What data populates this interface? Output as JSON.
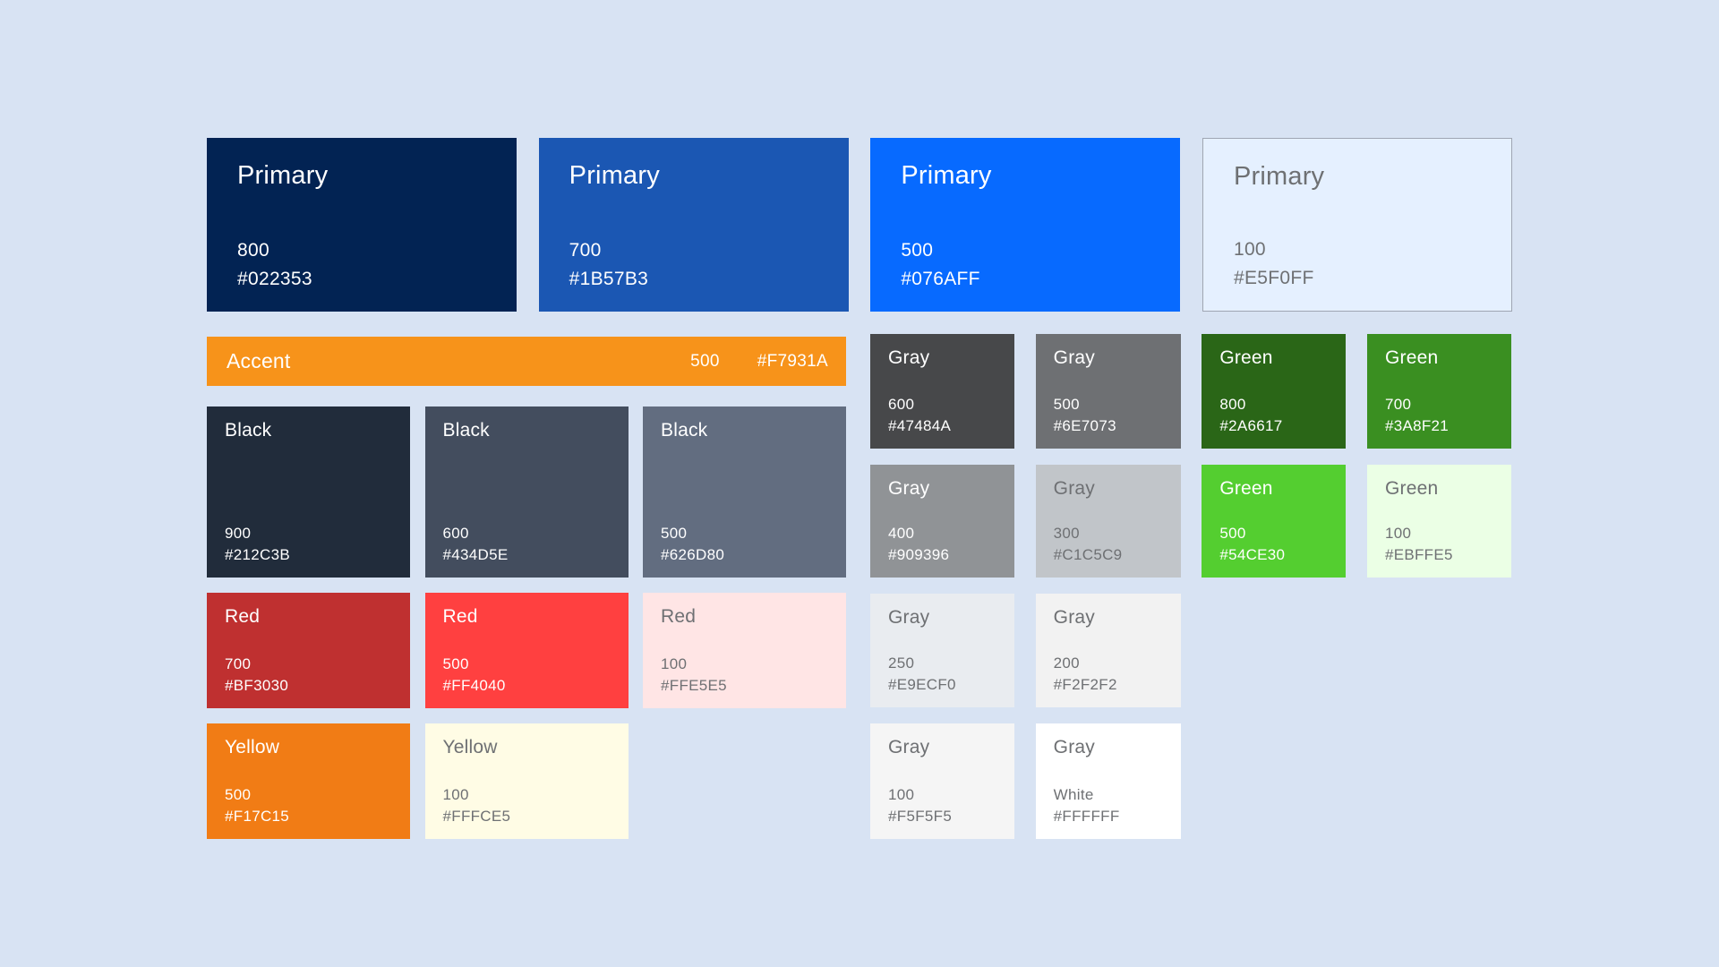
{
  "page": {
    "background": "#D8E3F3",
    "text_light": "#FFFFFF",
    "text_dark": "#6E7073"
  },
  "primary": {
    "p800": {
      "name": "Primary",
      "shade": "800",
      "hex": "#022353",
      "fg": "#FFFFFF"
    },
    "p700": {
      "name": "Primary",
      "shade": "700",
      "hex": "#1B57B3",
      "fg": "#FFFFFF"
    },
    "p500": {
      "name": "Primary",
      "shade": "500",
      "hex": "#076AFF",
      "fg": "#FFFFFF"
    },
    "p100": {
      "name": "Primary",
      "shade": "100",
      "hex": "#E5F0FF",
      "fg": "#6E7073"
    }
  },
  "accent": {
    "name": "Accent",
    "shade": "500",
    "hex": "#F7931A",
    "fg": "#FFFFFF"
  },
  "black": {
    "b900": {
      "name": "Black",
      "shade": "900",
      "hex": "#212C3B",
      "fg": "#FFFFFF"
    },
    "b600": {
      "name": "Black",
      "shade": "600",
      "hex": "#434D5E",
      "fg": "#FFFFFF"
    },
    "b500": {
      "name": "Black",
      "shade": "500",
      "hex": "#626D80",
      "fg": "#FFFFFF"
    }
  },
  "red": {
    "r700": {
      "name": "Red",
      "shade": "700",
      "hex": "#BF3030",
      "fg": "#FFFFFF"
    },
    "r500": {
      "name": "Red",
      "shade": "500",
      "hex": "#FF4040",
      "fg": "#FFFFFF"
    },
    "r100": {
      "name": "Red",
      "shade": "100",
      "hex": "#FFE5E5",
      "fg": "#6E7073"
    }
  },
  "yellow": {
    "y500": {
      "name": "Yellow",
      "shade": "500",
      "hex": "#F17C15",
      "fg": "#FFFFFF"
    },
    "y100": {
      "name": "Yellow",
      "shade": "100",
      "hex": "#FFFCE5",
      "fg": "#6E7073"
    }
  },
  "gray": {
    "g600": {
      "name": "Gray",
      "shade": "600",
      "hex": "#47484A",
      "fg": "#FFFFFF"
    },
    "g500": {
      "name": "Gray",
      "shade": "500",
      "hex": "#6E7073",
      "fg": "#FFFFFF"
    },
    "g400": {
      "name": "Gray",
      "shade": "400",
      "hex": "#909396",
      "fg": "#FFFFFF"
    },
    "g300": {
      "name": "Gray",
      "shade": "300",
      "hex": "#C1C5C9",
      "fg": "#6E7073"
    },
    "g250": {
      "name": "Gray",
      "shade": "250",
      "hex": "#E9ECF0",
      "fg": "#6E7073"
    },
    "g200": {
      "name": "Gray",
      "shade": "200",
      "hex": "#F2F2F2",
      "fg": "#6E7073"
    },
    "g100": {
      "name": "Gray",
      "shade": "100",
      "hex": "#F5F5F5",
      "fg": "#6E7073"
    },
    "gwhite": {
      "name": "Gray",
      "shade": "White",
      "hex": "#FFFFFF",
      "fg": "#6E7073"
    }
  },
  "green": {
    "gr800": {
      "name": "Green",
      "shade": "800",
      "hex": "#2A6617",
      "fg": "#FFFFFF"
    },
    "gr700": {
      "name": "Green",
      "shade": "700",
      "hex": "#3A8F21",
      "fg": "#FFFFFF"
    },
    "gr500": {
      "name": "Green",
      "shade": "500",
      "hex": "#54CE30",
      "fg": "#FFFFFF"
    },
    "gr100": {
      "name": "Green",
      "shade": "100",
      "hex": "#EBFFE5",
      "fg": "#6E7073"
    }
  }
}
